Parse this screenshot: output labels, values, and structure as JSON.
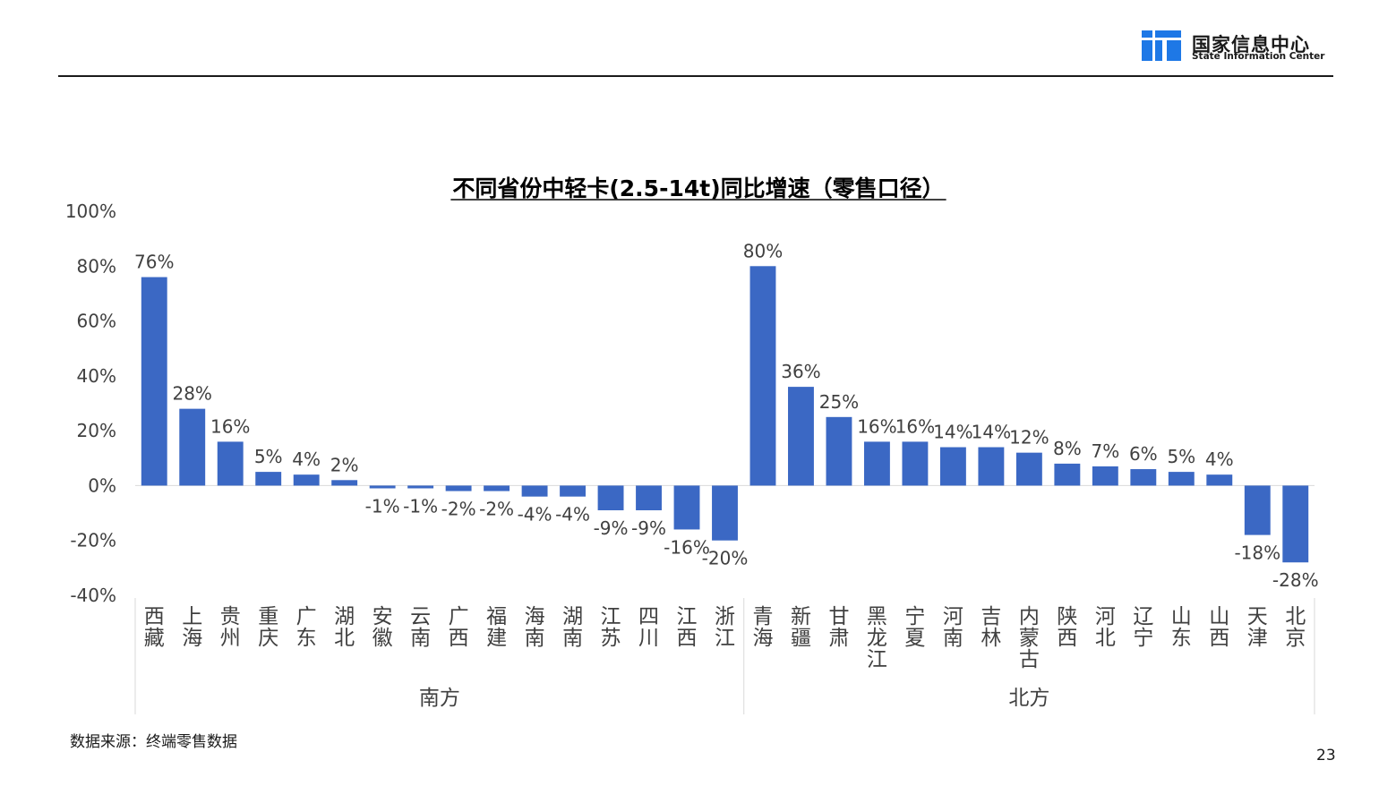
{
  "header": {
    "org_name_cn": "国家信息中心",
    "org_name_en": "State Information Center",
    "brand_color": "#1E78E6"
  },
  "footer": {
    "source": "数据来源：终端零售数据",
    "page_number": "23"
  },
  "chart_data": {
    "type": "bar",
    "title": "不同省份中轻卡(2.5-14t)同比增速（零售口径）",
    "xlabel": "",
    "ylabel": "",
    "ylim": [
      -40,
      100
    ],
    "yticks": [
      -40,
      -20,
      0,
      20,
      40,
      60,
      80,
      100
    ],
    "ytick_labels": [
      "-40%",
      "-20%",
      "0%",
      "20%",
      "40%",
      "60%",
      "80%",
      "100%"
    ],
    "grid": false,
    "legend": "none",
    "bar_color": "#3B68C4",
    "categories": [
      "西藏",
      "上海",
      "贵州",
      "重庆",
      "广东",
      "湖北",
      "安徽",
      "云南",
      "广西",
      "福建",
      "海南",
      "湖南",
      "江苏",
      "四川",
      "江西",
      "浙江",
      "青海",
      "新疆",
      "甘肃",
      "黑龙江",
      "宁夏",
      "河南",
      "吉林",
      "内蒙古",
      "陕西",
      "河北",
      "辽宁",
      "山东",
      "山西",
      "天津",
      "北京"
    ],
    "values": [
      76,
      28,
      16,
      5,
      4,
      2,
      -1,
      -1,
      -2,
      -2,
      -4,
      -4,
      -9,
      -9,
      -16,
      -20,
      80,
      36,
      25,
      16,
      16,
      14,
      14,
      12,
      8,
      7,
      6,
      5,
      4,
      -18,
      -28
    ],
    "data_labels": [
      "76%",
      "28%",
      "16%",
      "5%",
      "4%",
      "2%",
      "-1%",
      "-1%",
      "-2%",
      "-2%",
      "-4%",
      "-4%",
      "-9%",
      "-9%",
      "-16%",
      "-20%",
      "80%",
      "36%",
      "25%",
      "16%",
      "16%",
      "14%",
      "14%",
      "12%",
      "8%",
      "7%",
      "6%",
      "5%",
      "4%",
      "-18%",
      "-28%"
    ],
    "groups": [
      {
        "name": "南方",
        "count": 16
      },
      {
        "name": "北方",
        "count": 15
      }
    ]
  }
}
